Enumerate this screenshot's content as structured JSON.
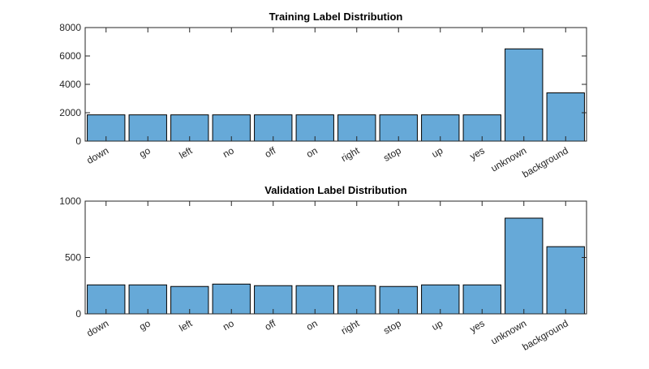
{
  "chart_data": [
    {
      "type": "bar",
      "title": "Training Label Distribution",
      "categories": [
        "down",
        "go",
        "left",
        "no",
        "off",
        "on",
        "right",
        "stop",
        "up",
        "yes",
        "unknown",
        "background"
      ],
      "values": [
        1850,
        1850,
        1850,
        1850,
        1850,
        1850,
        1850,
        1850,
        1850,
        1850,
        6500,
        3400
      ],
      "ylim": [
        0,
        8000
      ],
      "yticks": [
        0,
        2000,
        4000,
        6000,
        8000
      ],
      "xlabel": "",
      "ylabel": "",
      "grid": false,
      "bar_color": "#66a9d8"
    },
    {
      "type": "bar",
      "title": "Validation Label Distribution",
      "categories": [
        "down",
        "go",
        "left",
        "no",
        "off",
        "on",
        "right",
        "stop",
        "up",
        "yes",
        "unknown",
        "background"
      ],
      "values": [
        257,
        257,
        243,
        264,
        250,
        250,
        250,
        243,
        257,
        257,
        849,
        596
      ],
      "ylim": [
        0,
        1000
      ],
      "yticks": [
        0,
        500,
        1000
      ],
      "xlabel": "",
      "ylabel": "",
      "grid": false,
      "bar_color": "#66a9d8"
    }
  ]
}
